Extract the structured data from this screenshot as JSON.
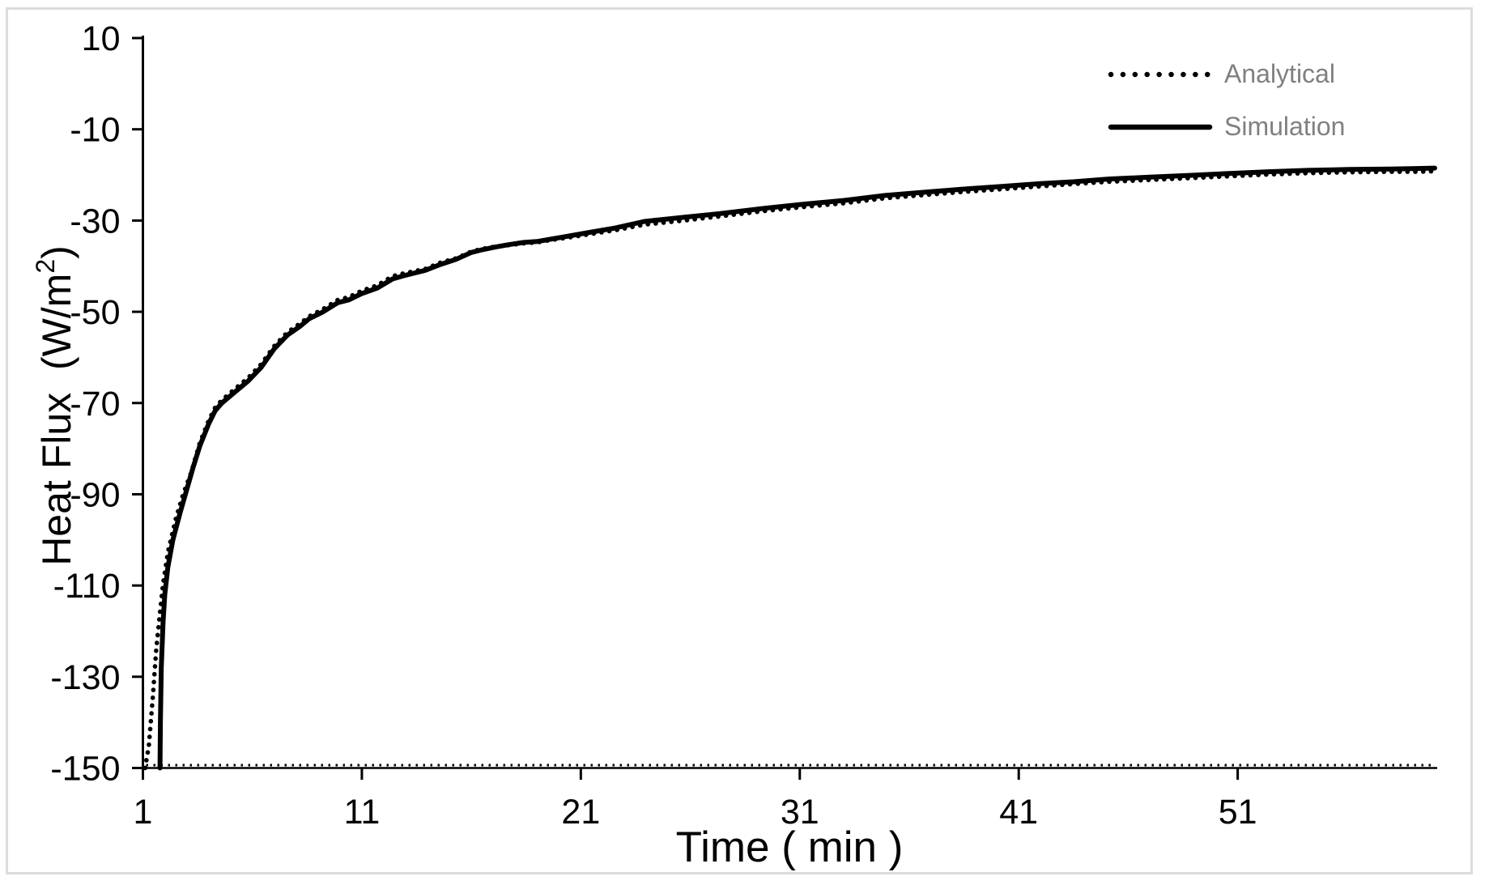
{
  "page": {
    "background": "#ffffff",
    "border_color": "#dcdcdc"
  },
  "legend": {
    "text_color": "#808080",
    "line_color": "#000000",
    "position": "top-right"
  },
  "chart_data": {
    "type": "line",
    "title": "",
    "xlabel": "Time ( min )",
    "ylabel": "Heat Flux  (W/m²)",
    "ylabel_parts": {
      "main": "Heat Flux  (W/m",
      "sup": "2",
      "end": ")"
    },
    "grid": false,
    "axis_color": "#000000",
    "x_axis": {
      "min": 1,
      "max": 60,
      "tick_values": [
        1,
        11,
        21,
        31,
        41,
        51
      ],
      "tick_labels": [
        "1",
        "11",
        "21",
        "31",
        "41",
        "51"
      ]
    },
    "y_axis": {
      "min": -150,
      "max": 10,
      "tick_values": [
        10,
        -10,
        -30,
        -50,
        -70,
        -90,
        -110,
        -130,
        -150
      ],
      "tick_labels": [
        "10",
        "-10",
        "-30",
        "-50",
        "-70",
        "-90",
        "-110",
        "-130",
        "-150"
      ]
    },
    "series": [
      {
        "name": "Analytical",
        "style": "dotted",
        "color": "#000000",
        "x": [
          1.1,
          1.27,
          1.45,
          1.61,
          1.76,
          1.92,
          2.15,
          2.5,
          2.83,
          3.2,
          3.6,
          4,
          4.3,
          4.6,
          5.2,
          5.8,
          6.4,
          7,
          7.6,
          8.2,
          8.6,
          9.2,
          9.9,
          10.4,
          11,
          11.7,
          12.4,
          12.9,
          13.9,
          14.6,
          15.3,
          16,
          16.5,
          17.1,
          17.7,
          18.4,
          19,
          19.6,
          20.2,
          21.4,
          22.6,
          23.9,
          25.7,
          27.5,
          29.4,
          31.2,
          33,
          34.9,
          36.7,
          38.5,
          40.3,
          42,
          43.5,
          45.1,
          47,
          48.8,
          50.6,
          52.4,
          54.2,
          56.1,
          58,
          59.2,
          60
        ],
        "y": [
          -150,
          -145.2,
          -134.6,
          -123.9,
          -116.8,
          -109.6,
          -102.5,
          -95.4,
          -90.1,
          -85.3,
          -78.7,
          -73.9,
          -71,
          -69.4,
          -66.9,
          -64.5,
          -61.5,
          -57.5,
          -54.5,
          -52.5,
          -51,
          -49.5,
          -47.4,
          -46.8,
          -45.4,
          -44.2,
          -42.2,
          -41.6,
          -40.6,
          -39.2,
          -38.3,
          -36.8,
          -36.2,
          -35.7,
          -35.4,
          -35,
          -34.8,
          -34.3,
          -33.9,
          -33,
          -32.1,
          -30.9,
          -30,
          -29,
          -27.9,
          -27,
          -26.2,
          -25.1,
          -24.4,
          -23.7,
          -23.1,
          -22.5,
          -22,
          -21.5,
          -21.1,
          -20.7,
          -20.3,
          -19.9,
          -19.6,
          -19.4,
          -19.3,
          -19.3,
          -19.2
        ]
      },
      {
        "name": "Simulation",
        "style": "solid",
        "color": "#000000",
        "x": [
          1.78,
          1.8,
          1.84,
          1.92,
          2,
          2.14,
          2.37,
          2.7,
          3,
          3.3,
          3.6,
          4,
          4.3,
          4.6,
          5.2,
          5.8,
          6.4,
          7,
          7.6,
          8.2,
          8.6,
          9.2,
          9.9,
          10.4,
          11,
          11.7,
          12.4,
          12.9,
          13.9,
          14.6,
          15.3,
          16,
          16.5,
          17.1,
          17.7,
          18.4,
          19,
          19.6,
          20.2,
          21.4,
          22.6,
          23.9,
          25.7,
          27.5,
          29.4,
          31.2,
          33,
          34.9,
          36.7,
          38.5,
          40.3,
          42,
          43.5,
          45.1,
          47,
          48.8,
          50.6,
          52.4,
          54.2,
          56.1,
          58,
          59.2,
          60
        ],
        "y": [
          -150,
          -140,
          -128,
          -118,
          -112,
          -106,
          -100,
          -94,
          -89,
          -84,
          -79.4,
          -74.6,
          -71.7,
          -70,
          -67.6,
          -65.2,
          -62.2,
          -58.1,
          -55.1,
          -53.1,
          -51.5,
          -50.1,
          -48,
          -47.4,
          -46,
          -44.8,
          -42.8,
          -42.1,
          -40.9,
          -39.6,
          -38.5,
          -37,
          -36.4,
          -35.8,
          -35.3,
          -34.8,
          -34.6,
          -34.1,
          -33.6,
          -32.6,
          -31.6,
          -30.2,
          -29.3,
          -28.4,
          -27.3,
          -26.4,
          -25.6,
          -24.5,
          -23.8,
          -23.1,
          -22.5,
          -21.9,
          -21.5,
          -20.9,
          -20.5,
          -20.1,
          -19.7,
          -19.3,
          -19,
          -18.8,
          -18.7,
          -18.6,
          -18.5
        ]
      }
    ]
  }
}
